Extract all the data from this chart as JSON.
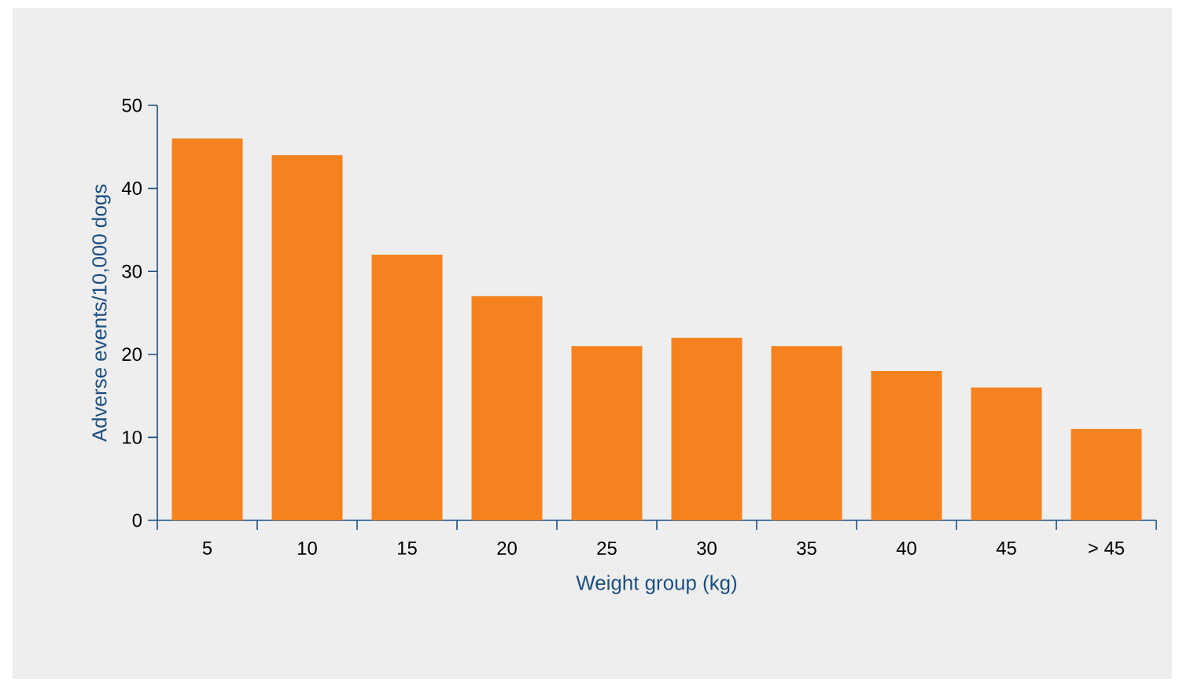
{
  "chart_data": {
    "type": "bar",
    "xlabel": "Weight group (kg)",
    "ylabel": "Adverse events/10,000 dogs",
    "categories": [
      "5",
      "10",
      "15",
      "20",
      "25",
      "30",
      "35",
      "40",
      "45",
      "> 45"
    ],
    "values": [
      46,
      44,
      32,
      27,
      21,
      22,
      21,
      18,
      16,
      11
    ],
    "color": "#f5821f",
    "ylim": [
      0,
      50
    ],
    "yticks": [
      0,
      10,
      20,
      30,
      40,
      50
    ]
  }
}
